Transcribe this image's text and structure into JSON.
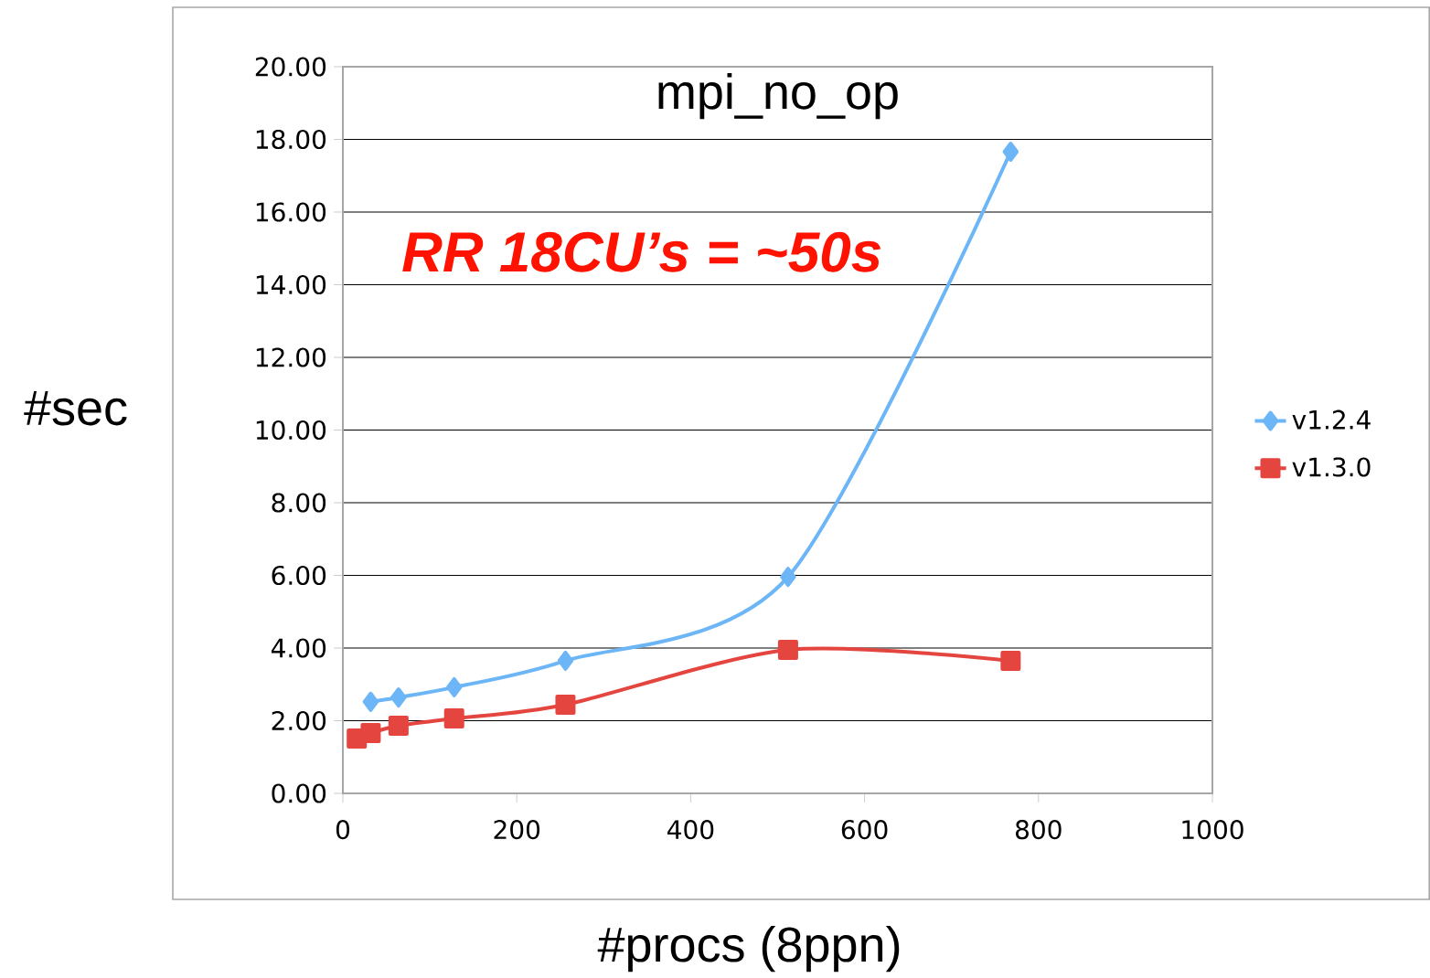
{
  "chart_data": {
    "type": "line",
    "title": "mpi_no_op",
    "xlabel": "#procs (8ppn)",
    "ylabel": "#sec",
    "annotations": [
      "*RR 18CU’s = ~50s*"
    ],
    "x": [
      16,
      32,
      64,
      128,
      256,
      512,
      768
    ],
    "series": [
      {
        "name": "v1.2.4",
        "color": "#6cb6f7",
        "marker": "diamond",
        "values": [
          null,
          2.52,
          2.64,
          2.92,
          3.65,
          5.96,
          17.66
        ]
      },
      {
        "name": "v1.3.0",
        "color": "#e5453f",
        "marker": "square",
        "values": [
          1.51,
          1.66,
          1.86,
          2.06,
          2.44,
          3.95,
          3.65
        ]
      }
    ],
    "xlim": [
      0,
      1000
    ],
    "xticks": [
      0,
      200,
      400,
      600,
      800,
      1000
    ],
    "ylim": [
      0,
      20
    ],
    "yticks": [
      {
        "value": 0,
        "label": "0.00"
      },
      {
        "value": 2,
        "label": "2.00"
      },
      {
        "value": 4,
        "label": "4.00"
      },
      {
        "value": 6,
        "label": "6.00"
      },
      {
        "value": 8,
        "label": "8.00"
      },
      {
        "value": 10,
        "label": "10.00"
      },
      {
        "value": 12,
        "label": "12.00"
      },
      {
        "value": 14,
        "label": "14.00"
      },
      {
        "value": 16,
        "label": "16.00"
      },
      {
        "value": 18,
        "label": "18.00"
      },
      {
        "value": 20,
        "label": "20.00"
      }
    ],
    "grid": "y",
    "legend": "right",
    "line_style": "solid"
  }
}
